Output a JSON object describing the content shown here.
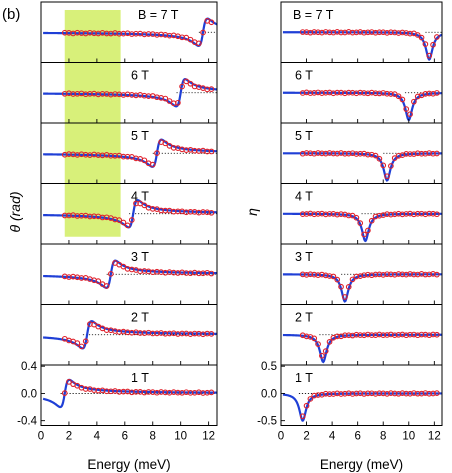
{
  "panel_label": "(b)",
  "colors": {
    "model": "#1f3fd6",
    "data_points": "#e0202a",
    "shade": "#d8f07a",
    "reference": "#000000"
  },
  "chart_data": [
    {
      "type": "line",
      "column": "left",
      "ylabel": "θ (rad)",
      "xlabel": "Energy (meV)",
      "xlim": [
        0,
        12.6
      ],
      "xticks": [
        "0",
        "2",
        "4",
        "6",
        "8",
        "10",
        "12"
      ],
      "ylim": [
        -0.4,
        0.4
      ],
      "yticks": [
        "0.4",
        "0.0",
        "-0.4"
      ],
      "grid": false,
      "shaded_band": {
        "x": [
          1.7,
          5.7
        ],
        "panels": [
          "B = 7 T",
          "6 T",
          "5 T",
          "4 T"
        ]
      },
      "panels": [
        {
          "label": "B = 7 T",
          "field": 7,
          "feature_x": 11.6,
          "kind": "dispersive"
        },
        {
          "label": "6 T",
          "field": 6,
          "feature_x": 10.0,
          "kind": "dispersive"
        },
        {
          "label": "5 T",
          "field": 5,
          "feature_x": 8.3,
          "kind": "dispersive"
        },
        {
          "label": "4 T",
          "field": 4,
          "feature_x": 6.6,
          "kind": "dispersive"
        },
        {
          "label": "3 T",
          "field": 3,
          "feature_x": 5.0,
          "kind": "dispersive"
        },
        {
          "label": "2 T",
          "field": 2,
          "feature_x": 3.3,
          "kind": "dispersive"
        },
        {
          "label": "1 T",
          "field": 1,
          "feature_x": 1.7,
          "kind": "dispersive"
        }
      ]
    },
    {
      "type": "line",
      "column": "right",
      "ylabel": "η",
      "xlabel": "Energy (meV)",
      "xlim": [
        0,
        12.6
      ],
      "xticks": [
        "0",
        "2",
        "4",
        "6",
        "8",
        "10",
        "12"
      ],
      "ylim": [
        -0.5,
        0.5
      ],
      "yticks": [
        "0.5",
        "0.0",
        "-0.5"
      ],
      "grid": false,
      "panels": [
        {
          "label": "B = 7 T",
          "field": 7,
          "feature_x": 11.6,
          "kind": "absorptive"
        },
        {
          "label": "6 T",
          "field": 6,
          "feature_x": 10.0,
          "kind": "absorptive"
        },
        {
          "label": "5 T",
          "field": 5,
          "feature_x": 8.3,
          "kind": "absorptive"
        },
        {
          "label": "4 T",
          "field": 4,
          "feature_x": 6.6,
          "kind": "absorptive"
        },
        {
          "label": "3 T",
          "field": 3,
          "feature_x": 5.0,
          "kind": "absorptive"
        },
        {
          "label": "2 T",
          "field": 2,
          "feature_x": 3.3,
          "kind": "absorptive"
        },
        {
          "label": "1 T",
          "field": 1,
          "feature_x": 1.7,
          "kind": "absorptive"
        }
      ]
    }
  ]
}
